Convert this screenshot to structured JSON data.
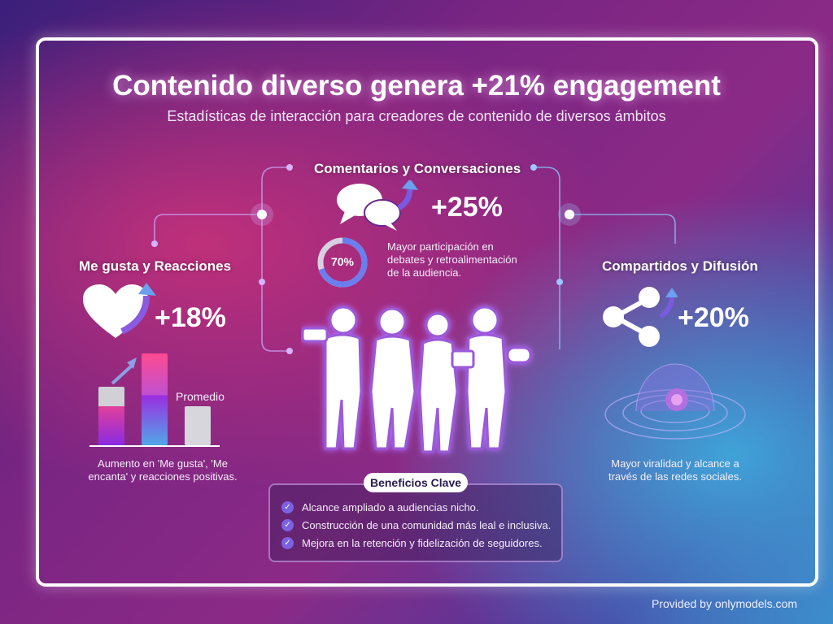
{
  "title": "Contenido diverso genera +21% engagement",
  "subtitle": "Estadísticas de interacción para creadores de contenido de diversos ámbitos",
  "likes": {
    "heading": "Me gusta y Reacciones",
    "value": "+18%",
    "bar_label": "Promedio",
    "caption_line1": "Aumento en 'Me gusta', 'Me",
    "caption_line2": "encanta' y reacciones positivas.",
    "icon": "heart-icon"
  },
  "comments": {
    "heading": "Comentarios y Conversaciones",
    "value": "+25%",
    "donut_label": "70%",
    "donut_percent": 70,
    "desc_line1": "Mayor participación en",
    "desc_line2": "debates y retroalimentación",
    "desc_line3": "de la audiencia.",
    "icon": "chat-bubbles-icon"
  },
  "shares": {
    "heading": "Compartidos y Difusión",
    "value": "+20%",
    "caption_line1": "Mayor viralidad y alcance a",
    "caption_line2": "través de las redes sociales.",
    "icon": "share-icon"
  },
  "benefits": {
    "title": "Beneficios Clave",
    "items": [
      "Alcance ampliado a audiencias nicho.",
      "Construcción de una comunidad más leal e inclusiva.",
      "Mejora en la retención y fidelización de seguidores."
    ]
  },
  "footer": "Provided by onlymodels.com",
  "colors": {
    "accent_pink": "#e8409a",
    "accent_purple": "#8a2be2",
    "accent_blue": "#4fa8e8"
  }
}
